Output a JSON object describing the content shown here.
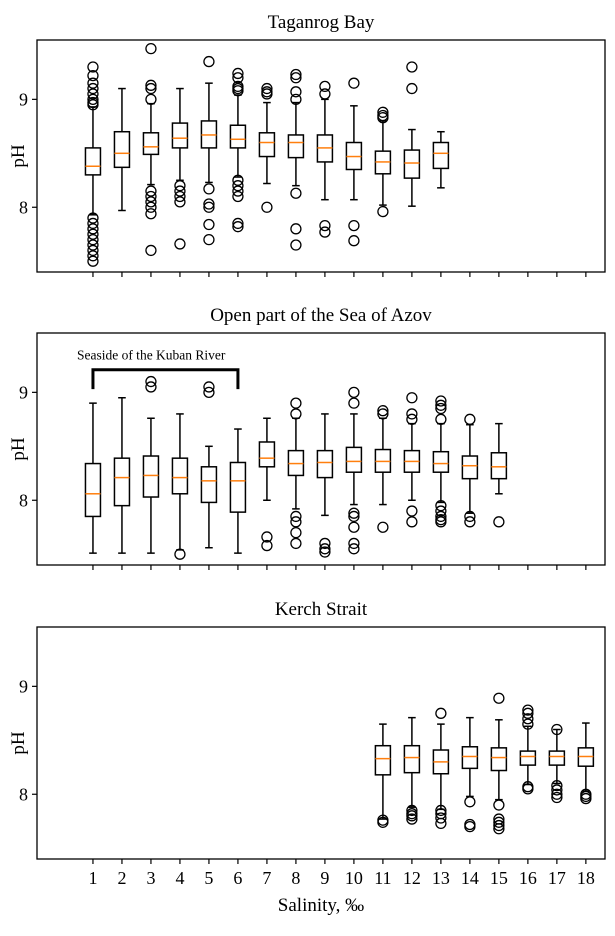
{
  "chart_data": [
    {
      "type": "box",
      "title": "Taganrog Bay",
      "ylabel": "pH",
      "xlabel": "",
      "xlim": [
        -0.93,
        18.66
      ],
      "ylim": [
        7.4,
        9.55
      ],
      "yticks": [
        8,
        9
      ],
      "xticks": [],
      "grid": false,
      "colors": {
        "box": "#000000",
        "median": "#ff7f0e"
      },
      "boxes": [
        {
          "x": 1,
          "whislo": 7.93,
          "q1": 8.3,
          "med": 8.38,
          "q3": 8.55,
          "whishi": 8.93,
          "fliers": [
            9.3,
            9.22,
            9.15,
            9.1,
            9.05,
            9.0,
            8.97,
            8.95,
            7.9,
            7.85,
            7.8,
            7.75,
            7.7,
            7.65,
            7.6,
            7.55,
            7.5
          ]
        },
        {
          "x": 2,
          "whislo": 7.97,
          "q1": 8.37,
          "med": 8.5,
          "q3": 8.7,
          "whishi": 9.1,
          "fliers": []
        },
        {
          "x": 3,
          "whislo": 8.21,
          "q1": 8.49,
          "med": 8.56,
          "q3": 8.69,
          "whishi": 8.96,
          "fliers": [
            9.47,
            9.13,
            9.1,
            9.0,
            8.15,
            8.1,
            8.05,
            8.0,
            7.94,
            7.6
          ]
        },
        {
          "x": 4,
          "whislo": 8.25,
          "q1": 8.55,
          "med": 8.64,
          "q3": 8.78,
          "whishi": 9.1,
          "fliers": [
            8.2,
            8.15,
            8.1,
            8.05,
            7.66
          ]
        },
        {
          "x": 5,
          "whislo": 8.23,
          "q1": 8.55,
          "med": 8.67,
          "q3": 8.8,
          "whishi": 9.15,
          "fliers": [
            9.35,
            8.17,
            8.03,
            8.0,
            7.84,
            7.7
          ]
        },
        {
          "x": 6,
          "whislo": 8.28,
          "q1": 8.55,
          "med": 8.63,
          "q3": 8.76,
          "whishi": 9.04,
          "fliers": [
            9.24,
            9.2,
            9.12,
            9.1,
            9.08,
            8.25,
            8.2,
            8.15,
            8.1,
            7.85,
            7.82
          ]
        },
        {
          "x": 7,
          "whislo": 8.22,
          "q1": 8.47,
          "med": 8.6,
          "q3": 8.69,
          "whishi": 8.97,
          "fliers": [
            9.1,
            9.07,
            9.05,
            8.0
          ]
        },
        {
          "x": 8,
          "whislo": 8.2,
          "q1": 8.46,
          "med": 8.6,
          "q3": 8.67,
          "whishi": 8.97,
          "fliers": [
            9.23,
            9.2,
            9.07,
            9.0,
            8.13,
            7.8,
            7.65
          ]
        },
        {
          "x": 9,
          "whislo": 8.07,
          "q1": 8.42,
          "med": 8.55,
          "q3": 8.67,
          "whishi": 9.0,
          "fliers": [
            9.12,
            9.05,
            7.83,
            7.77
          ]
        },
        {
          "x": 10,
          "whislo": 8.07,
          "q1": 8.35,
          "med": 8.47,
          "q3": 8.6,
          "whishi": 8.94,
          "fliers": [
            9.15,
            7.83,
            7.69
          ]
        },
        {
          "x": 11,
          "whislo": 8.02,
          "q1": 8.31,
          "med": 8.42,
          "q3": 8.52,
          "whishi": 8.8,
          "fliers": [
            8.88,
            8.85,
            8.83,
            7.96
          ]
        },
        {
          "x": 12,
          "whislo": 8.01,
          "q1": 8.27,
          "med": 8.41,
          "q3": 8.53,
          "whishi": 8.72,
          "fliers": [
            9.3,
            9.1
          ]
        },
        {
          "x": 13,
          "whislo": 8.18,
          "q1": 8.36,
          "med": 8.5,
          "q3": 8.6,
          "whishi": 8.7,
          "fliers": []
        }
      ]
    },
    {
      "type": "box",
      "title": "Open part of the Sea of Azov",
      "ylabel": "pH",
      "xlabel": "",
      "xlim": [
        -0.93,
        18.66
      ],
      "ylim": [
        7.4,
        9.55
      ],
      "yticks": [
        8,
        9
      ],
      "xticks": [],
      "grid": false,
      "annotation": {
        "text": "Seaside of the Kuban River",
        "x_from": 1,
        "x_to": 6,
        "y": 9.21
      },
      "boxes": [
        {
          "x": 1,
          "whislo": 7.51,
          "q1": 7.85,
          "med": 8.06,
          "q3": 8.34,
          "whishi": 8.9,
          "fliers": []
        },
        {
          "x": 2,
          "whislo": 7.51,
          "q1": 7.95,
          "med": 8.21,
          "q3": 8.39,
          "whishi": 8.95,
          "fliers": []
        },
        {
          "x": 3,
          "whislo": 7.51,
          "q1": 8.03,
          "med": 8.23,
          "q3": 8.41,
          "whishi": 8.76,
          "fliers": [
            9.1,
            9.05
          ]
        },
        {
          "x": 4,
          "whislo": 7.54,
          "q1": 8.06,
          "med": 8.21,
          "q3": 8.39,
          "whishi": 8.8,
          "fliers": [
            7.5
          ]
        },
        {
          "x": 5,
          "whislo": 7.56,
          "q1": 7.98,
          "med": 8.18,
          "q3": 8.31,
          "whishi": 8.5,
          "fliers": [
            9.05,
            9.0
          ]
        },
        {
          "x": 6,
          "whislo": 7.51,
          "q1": 7.89,
          "med": 8.18,
          "q3": 8.35,
          "whishi": 8.66,
          "fliers": []
        },
        {
          "x": 7,
          "whislo": 8.0,
          "q1": 8.31,
          "med": 8.39,
          "q3": 8.54,
          "whishi": 8.76,
          "fliers": [
            7.66,
            7.58
          ]
        },
        {
          "x": 8,
          "whislo": 7.92,
          "q1": 8.23,
          "med": 8.34,
          "q3": 8.46,
          "whishi": 8.76,
          "fliers": [
            8.9,
            8.8,
            7.85,
            7.8,
            7.7,
            7.6
          ]
        },
        {
          "x": 9,
          "whislo": 7.86,
          "q1": 8.21,
          "med": 8.35,
          "q3": 8.46,
          "whishi": 8.8,
          "fliers": [
            7.6,
            7.55,
            7.52
          ]
        },
        {
          "x": 10,
          "whislo": 7.96,
          "q1": 8.26,
          "med": 8.36,
          "q3": 8.49,
          "whishi": 8.8,
          "fliers": [
            9.0,
            8.9,
            7.88,
            7.85,
            7.75,
            7.6,
            7.55
          ]
        },
        {
          "x": 11,
          "whislo": 7.96,
          "q1": 8.26,
          "med": 8.36,
          "q3": 8.47,
          "whishi": 8.76,
          "fliers": [
            8.83,
            8.8,
            7.75
          ]
        },
        {
          "x": 12,
          "whislo": 8.0,
          "q1": 8.26,
          "med": 8.36,
          "q3": 8.46,
          "whishi": 8.71,
          "fliers": [
            8.95,
            8.8,
            8.75,
            7.9,
            7.8
          ]
        },
        {
          "x": 13,
          "whislo": 7.98,
          "q1": 8.26,
          "med": 8.34,
          "q3": 8.45,
          "whishi": 8.71,
          "fliers": [
            8.92,
            8.88,
            8.85,
            8.75,
            7.95,
            7.9,
            7.85,
            7.82,
            7.8
          ]
        },
        {
          "x": 14,
          "whislo": 7.88,
          "q1": 8.2,
          "med": 8.32,
          "q3": 8.41,
          "whishi": 8.7,
          "fliers": [
            8.75,
            7.85,
            7.8
          ]
        },
        {
          "x": 15,
          "whislo": 8.06,
          "q1": 8.2,
          "med": 8.31,
          "q3": 8.44,
          "whishi": 8.71,
          "fliers": [
            7.8
          ]
        }
      ]
    },
    {
      "type": "box",
      "title": "Kerch Strait",
      "ylabel": "pH",
      "xlabel": "Salinity, ‰",
      "xlim": [
        -0.93,
        18.66
      ],
      "ylim": [
        7.4,
        9.55
      ],
      "yticks": [
        8,
        9
      ],
      "xticks": [
        "1",
        "2",
        "3",
        "4",
        "5",
        "6",
        "7",
        "8",
        "9",
        "10",
        "11",
        "12",
        "13",
        "14",
        "15",
        "16",
        "17",
        "18"
      ],
      "grid": false,
      "boxes": [
        {
          "x": 11,
          "whislo": 7.77,
          "q1": 8.18,
          "med": 8.33,
          "q3": 8.45,
          "whishi": 8.65,
          "fliers": [
            7.76,
            7.74
          ]
        },
        {
          "x": 12,
          "whislo": 7.88,
          "q1": 8.2,
          "med": 8.34,
          "q3": 8.45,
          "whishi": 8.71,
          "fliers": [
            7.85,
            7.82,
            7.8,
            7.77
          ]
        },
        {
          "x": 13,
          "whislo": 7.86,
          "q1": 8.19,
          "med": 8.3,
          "q3": 8.41,
          "whishi": 8.65,
          "fliers": [
            8.75,
            7.85,
            7.82,
            7.78,
            7.73
          ]
        },
        {
          "x": 14,
          "whislo": 7.98,
          "q1": 8.24,
          "med": 8.35,
          "q3": 8.44,
          "whishi": 8.71,
          "fliers": [
            7.93,
            7.72,
            7.7
          ]
        },
        {
          "x": 15,
          "whislo": 7.95,
          "q1": 8.22,
          "med": 8.34,
          "q3": 8.43,
          "whishi": 8.69,
          "fliers": [
            8.89,
            7.9,
            7.77,
            7.74,
            7.71,
            7.68
          ]
        },
        {
          "x": 16,
          "whislo": 8.09,
          "q1": 8.27,
          "med": 8.35,
          "q3": 8.4,
          "whishi": 8.63,
          "fliers": [
            8.78,
            8.75,
            8.7,
            8.65,
            8.07,
            8.05
          ]
        },
        {
          "x": 17,
          "whislo": 8.1,
          "q1": 8.27,
          "med": 8.35,
          "q3": 8.4,
          "whishi": 8.6,
          "fliers": [
            8.6,
            8.08,
            8.04,
            8.0,
            7.97
          ]
        },
        {
          "x": 18,
          "whislo": 8.03,
          "q1": 8.26,
          "med": 8.35,
          "q3": 8.43,
          "whishi": 8.66,
          "fliers": [
            8.0,
            7.98,
            7.96
          ]
        }
      ]
    }
  ]
}
